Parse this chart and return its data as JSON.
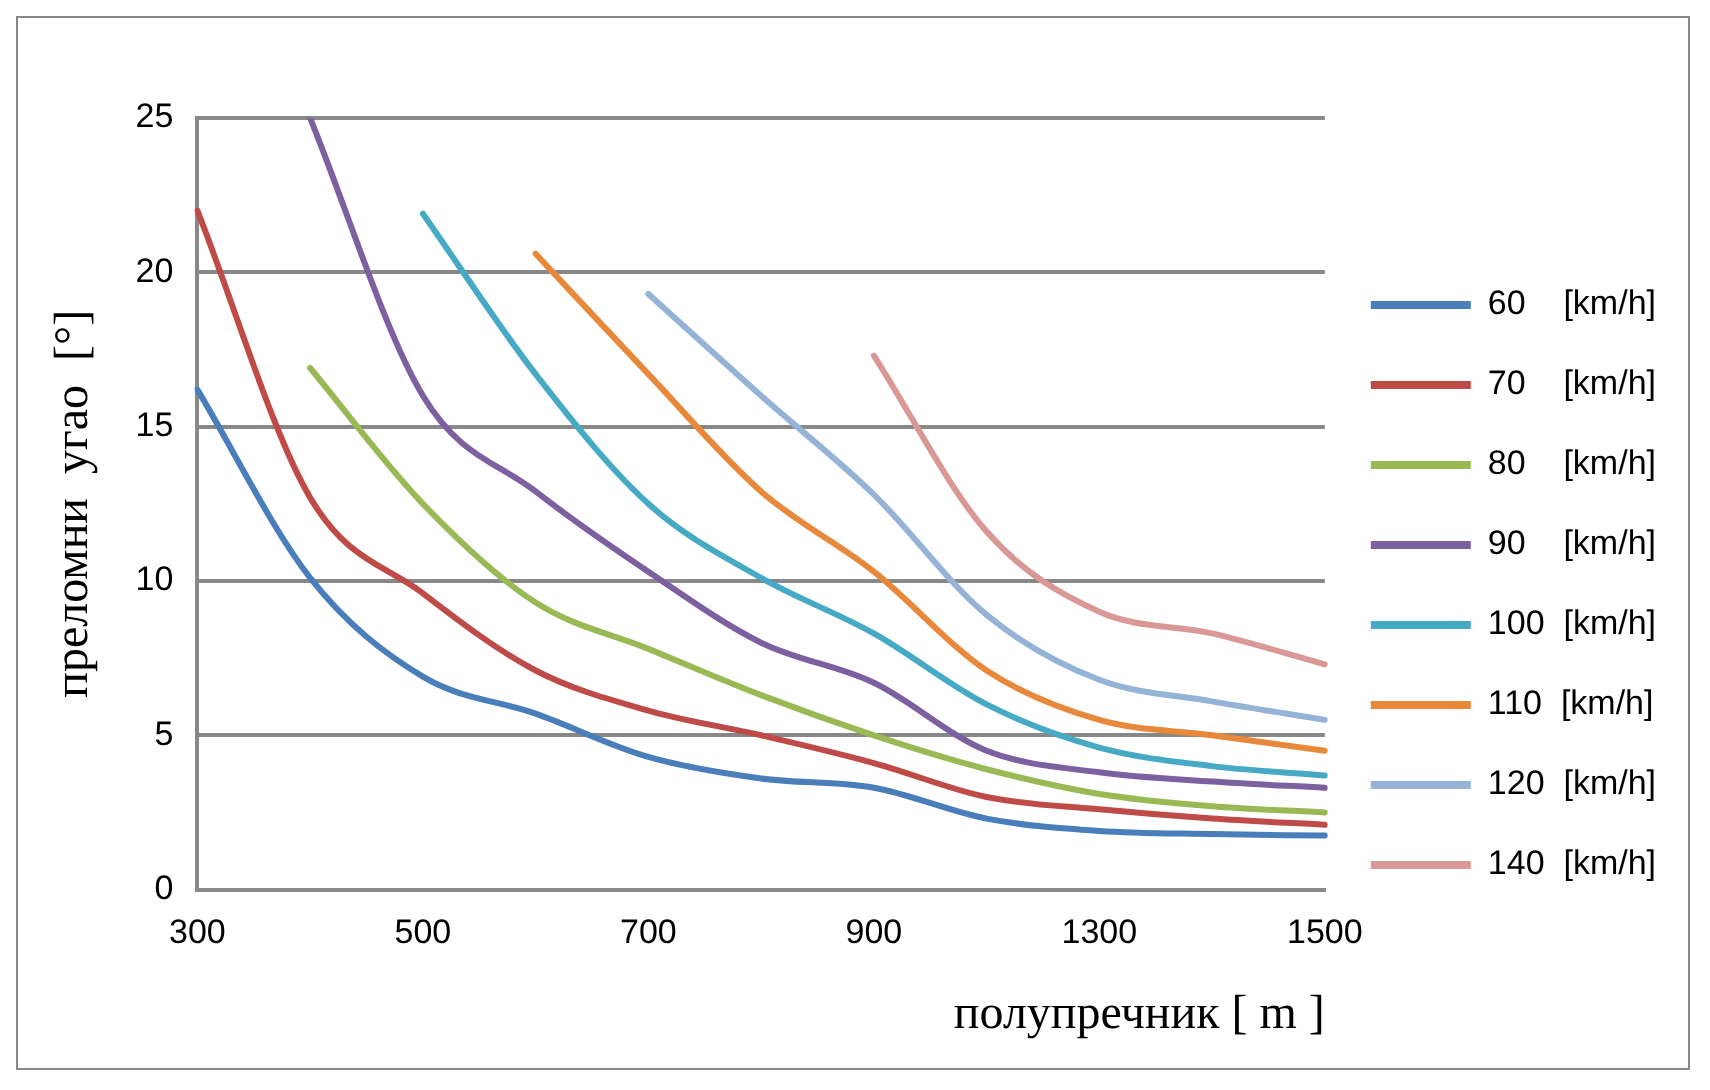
{
  "chart_data": {
    "type": "line",
    "xlabel": "полупречник [ m ]",
    "ylabel": "преломни  угао  [°]",
    "categories": [
      "300",
      null,
      "500",
      null,
      "700",
      null,
      "900",
      null,
      "1300",
      null,
      "1500"
    ],
    "ylim": [
      0,
      25
    ],
    "yticks": [
      0,
      5,
      10,
      15,
      20,
      25
    ],
    "grid": "y",
    "legend": "right",
    "marker": "none",
    "series": [
      {
        "name": "60    [km/h]",
        "color": "#4a7ebb",
        "values": [
          16.2,
          10.1,
          6.9,
          5.7,
          4.3,
          3.6,
          3.3,
          2.3,
          1.9,
          1.8,
          1.75
        ]
      },
      {
        "name": "70    [km/h]",
        "color": "#be4b48",
        "values": [
          22.0,
          12.7,
          9.6,
          7.1,
          5.8,
          5.0,
          4.1,
          3.0,
          2.6,
          2.3,
          2.1
        ]
      },
      {
        "name": "80    [km/h]",
        "color": "#98b954",
        "values": [
          null,
          16.9,
          12.5,
          9.3,
          7.8,
          6.3,
          5.0,
          3.9,
          3.1,
          2.7,
          2.5
        ]
      },
      {
        "name": "90    [km/h]",
        "color": "#7d60a0",
        "values": [
          null,
          25,
          16.0,
          12.9,
          10.3,
          8.0,
          6.7,
          4.5,
          3.8,
          3.5,
          3.3
        ]
      },
      {
        "name": "100  [km/h]",
        "color": "#46aac5",
        "values": [
          null,
          null,
          21.9,
          16.7,
          12.5,
          10.1,
          8.3,
          6.0,
          4.6,
          4.0,
          3.7
        ]
      },
      {
        "name": "110  [km/h]",
        "color": "#e8883a",
        "values": [
          null,
          null,
          null,
          20.6,
          16.7,
          12.9,
          10.3,
          7.1,
          5.5,
          5.0,
          4.5
        ]
      },
      {
        "name": "120  [km/h]",
        "color": "#95b3d7",
        "values": [
          null,
          null,
          null,
          null,
          19.3,
          16.0,
          12.8,
          8.9,
          6.8,
          6.1,
          5.5
        ]
      },
      {
        "name": "140  [km/h]",
        "color": "#d99795",
        "values": [
          null,
          null,
          null,
          null,
          null,
          null,
          17.3,
          11.6,
          9.0,
          8.3,
          7.3
        ]
      }
    ]
  }
}
